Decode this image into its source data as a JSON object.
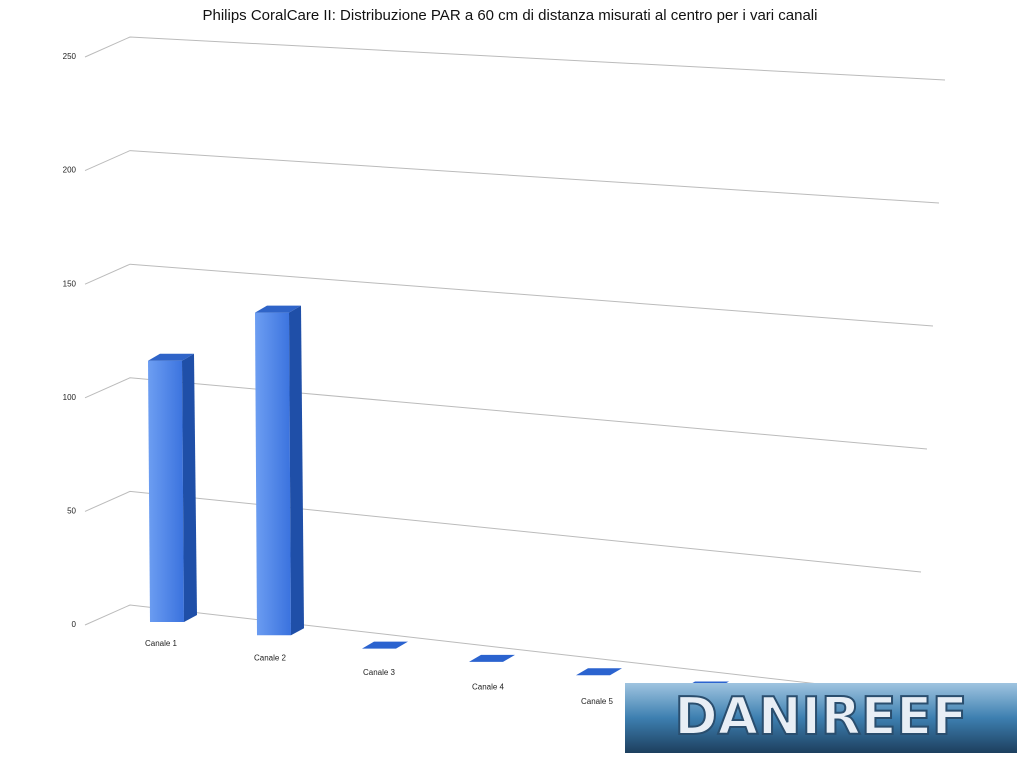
{
  "chart_data": {
    "type": "bar3d",
    "title": "Philips CoralCare II: Distribuzione PAR a 60 cm di distanza misurati al centro per i vari canali",
    "categories": [
      "Canale 1",
      "Canale 2",
      "Canale 3",
      "Canale 4",
      "Canale 5",
      null
    ],
    "values": [
      115,
      142,
      0,
      0,
      0,
      0
    ],
    "color": "#3f7be6",
    "ylim": [
      0,
      250
    ],
    "yticks": [
      0,
      50,
      100,
      150,
      200,
      250
    ],
    "grid": true
  },
  "watermark": "DANIREEF"
}
